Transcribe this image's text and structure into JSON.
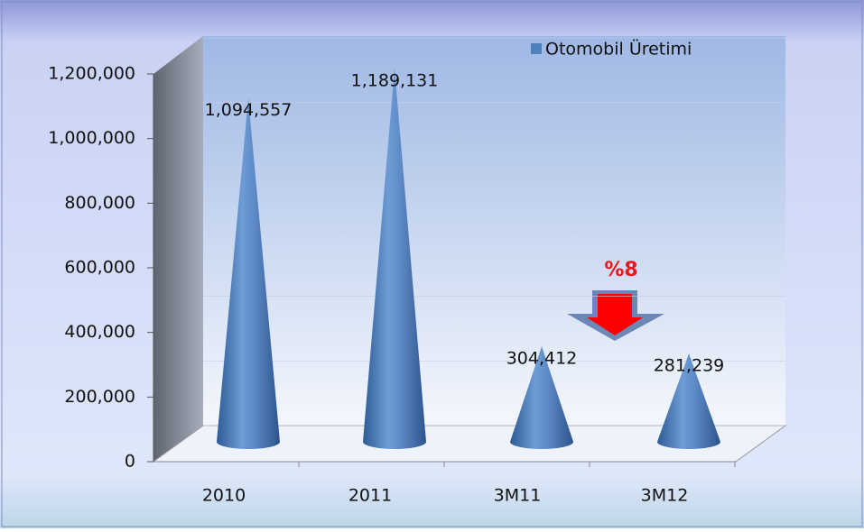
{
  "chart_data": {
    "type": "cone",
    "categories": [
      "2010",
      "2011",
      "3M11",
      "3M12"
    ],
    "series": [
      {
        "name": "Otomobil Üretimi",
        "color": "#4f81bd",
        "values": [
          1094557,
          1189131,
          304412,
          281239
        ],
        "value_labels": [
          "1,094,557",
          "1,189,131",
          "304,412",
          "281,239"
        ]
      }
    ],
    "ylim": [
      0,
      1200000
    ],
    "yticks": [
      {
        "value": 0,
        "label": "0"
      },
      {
        "value": 200000,
        "label": "200,000"
      },
      {
        "value": 400000,
        "label": "400,000"
      },
      {
        "value": 600000,
        "label": "600,000"
      },
      {
        "value": 800000,
        "label": "800,000"
      },
      {
        "value": 1000000,
        "label": "1,000,000"
      },
      {
        "value": 1200000,
        "label": "1,200,000"
      }
    ],
    "annotation": "%8",
    "legend": "top-right"
  }
}
